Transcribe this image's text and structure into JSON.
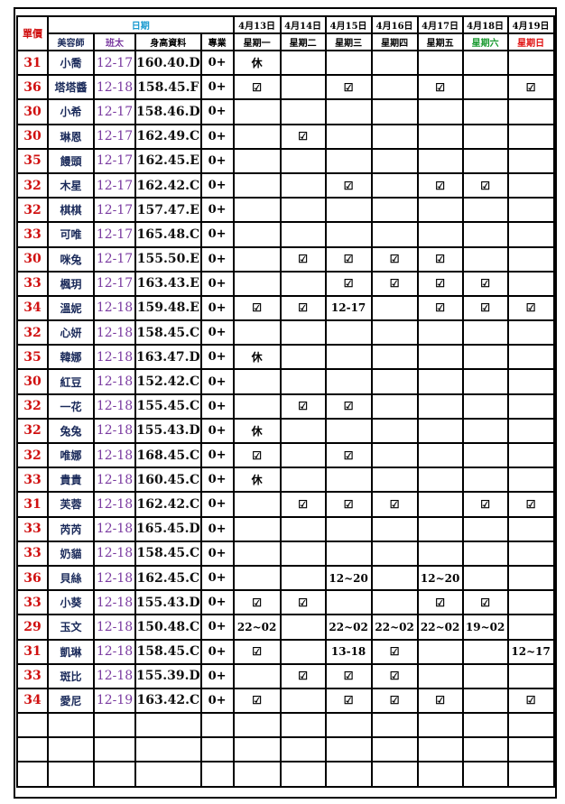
{
  "header": {
    "price": "單價",
    "date": "日期",
    "name": "美容師",
    "shift": "班太",
    "height": "身高資料",
    "specialty": "專業",
    "dates": [
      "4月13日",
      "4月14日",
      "4月15日",
      "4月16日",
      "4月17日",
      "4月18日",
      "4月19日"
    ],
    "weekdays": [
      "星期一",
      "星期二",
      "星期三",
      "星期四",
      "星期五",
      "星期六",
      "星期日"
    ]
  },
  "colors": {
    "price": "#d01010",
    "date_header": "#1a9ad0",
    "saturday": "#1a9a30",
    "sunday": "#e01010",
    "shift": "#7a3aa0"
  },
  "rows": [
    {
      "price": "31",
      "name": "小喬",
      "shift": "12-17",
      "height": "160.40.D",
      "spec": "0+",
      "days": [
        "休",
        "",
        "",
        "",
        "",
        "",
        ""
      ]
    },
    {
      "price": "36",
      "name": "塔塔醬",
      "shift": "12-18",
      "height": "158.45.F",
      "spec": "0+",
      "days": [
        "☑",
        "",
        "☑",
        "",
        "☑",
        "",
        "☑"
      ]
    },
    {
      "price": "30",
      "name": "小希",
      "shift": "12-17",
      "height": "158.46.D",
      "spec": "0+",
      "days": [
        "",
        "",
        "",
        "",
        "",
        "",
        ""
      ]
    },
    {
      "price": "30",
      "name": "琳恩",
      "shift": "12-17",
      "height": "162.49.C",
      "spec": "0+",
      "days": [
        "",
        "☑",
        "",
        "",
        "",
        "",
        ""
      ]
    },
    {
      "price": "35",
      "name": "饅頭",
      "shift": "12-17",
      "height": "162.45.E",
      "spec": "0+",
      "days": [
        "",
        "",
        "",
        "",
        "",
        "",
        ""
      ]
    },
    {
      "price": "32",
      "name": "木星",
      "shift": "12-17",
      "height": "162.42.C",
      "spec": "0+",
      "days": [
        "",
        "",
        "☑",
        "",
        "☑",
        "☑",
        ""
      ]
    },
    {
      "price": "32",
      "name": "棋棋",
      "shift": "12-17",
      "height": "157.47.E",
      "spec": "0+",
      "days": [
        "",
        "",
        "",
        "",
        "",
        "",
        ""
      ]
    },
    {
      "price": "33",
      "name": "可唯",
      "shift": "12-17",
      "height": "165.48.C",
      "spec": "0+",
      "days": [
        "",
        "",
        "",
        "",
        "",
        "",
        ""
      ]
    },
    {
      "price": "30",
      "name": "咪兔",
      "shift": "12-17",
      "height": "155.50.E",
      "spec": "0+",
      "days": [
        "",
        "☑",
        "☑",
        "☑",
        "☑",
        "",
        ""
      ]
    },
    {
      "price": "33",
      "name": "楓玥",
      "shift": "12-17",
      "height": "163.43.E",
      "spec": "0+",
      "days": [
        "",
        "",
        "☑",
        "☑",
        "☑",
        "☑",
        ""
      ]
    },
    {
      "price": "34",
      "name": "溫妮",
      "shift": "12-18",
      "height": "159.48.E",
      "spec": "0+",
      "days": [
        "☑",
        "☑",
        "12-17",
        "",
        "☑",
        "☑",
        "☑"
      ]
    },
    {
      "price": "32",
      "name": "心妍",
      "shift": "12-18",
      "height": "158.45.C",
      "spec": "0+",
      "days": [
        "",
        "",
        "",
        "",
        "",
        "",
        ""
      ]
    },
    {
      "price": "35",
      "name": "韓娜",
      "shift": "12-18",
      "height": "163.47.D",
      "spec": "0+",
      "days": [
        "休",
        "",
        "",
        "",
        "",
        "",
        ""
      ]
    },
    {
      "price": "30",
      "name": "紅豆",
      "shift": "12-18",
      "height": "152.42.C",
      "spec": "0+",
      "days": [
        "",
        "",
        "",
        "",
        "",
        "",
        ""
      ]
    },
    {
      "price": "32",
      "name": "一花",
      "shift": "12-18",
      "height": "155.45.C",
      "spec": "0+",
      "days": [
        "",
        "☑",
        "☑",
        "",
        "",
        "",
        ""
      ]
    },
    {
      "price": "32",
      "name": "兔兔",
      "shift": "12-18",
      "height": "155.43.D",
      "spec": "0+",
      "days": [
        "休",
        "",
        "",
        "",
        "",
        "",
        ""
      ]
    },
    {
      "price": "32",
      "name": "唯娜",
      "shift": "12-18",
      "height": "168.45.C",
      "spec": "0+",
      "days": [
        "☑",
        "",
        "☑",
        "",
        "",
        "",
        ""
      ]
    },
    {
      "price": "33",
      "name": "貴貴",
      "shift": "12-18",
      "height": "160.45.C",
      "spec": "0+",
      "days": [
        "休",
        "",
        "",
        "",
        "",
        "",
        ""
      ]
    },
    {
      "price": "31",
      "name": "芙蓉",
      "shift": "12-18",
      "height": "162.42.C",
      "spec": "0+",
      "days": [
        "",
        "☑",
        "☑",
        "☑",
        "",
        "☑",
        "☑"
      ]
    },
    {
      "price": "33",
      "name": "芮芮",
      "shift": "12-18",
      "height": "165.45.D",
      "spec": "0+",
      "days": [
        "",
        "",
        "",
        "",
        "",
        "",
        ""
      ]
    },
    {
      "price": "33",
      "name": "奶貓",
      "shift": "12-18",
      "height": "158.45.C",
      "spec": "0+",
      "days": [
        "",
        "",
        "",
        "",
        "",
        "",
        ""
      ]
    },
    {
      "price": "36",
      "name": "貝絲",
      "shift": "12-18",
      "height": "162.45.C",
      "spec": "0+",
      "days": [
        "",
        "",
        "12~20",
        "",
        "12~20",
        "",
        ""
      ]
    },
    {
      "price": "33",
      "name": "小葵",
      "shift": "12-18",
      "height": "155.43.D",
      "spec": "0+",
      "days": [
        "☑",
        "☑",
        "",
        "",
        "☑",
        "☑",
        ""
      ]
    },
    {
      "price": "29",
      "name": "玉文",
      "shift": "12-18",
      "height": "150.48.C",
      "spec": "0+",
      "days": [
        "22~02",
        "",
        "22~02",
        "22~02",
        "22~02",
        "19~02",
        ""
      ]
    },
    {
      "price": "31",
      "name": "凱琳",
      "shift": "12-18",
      "height": "158.45.C",
      "spec": "0+",
      "days": [
        "☑",
        "",
        "13-18",
        "☑",
        "",
        "",
        "12~17"
      ]
    },
    {
      "price": "33",
      "name": "斑比",
      "shift": "12-18",
      "height": "155.39.D",
      "spec": "0+",
      "days": [
        "",
        "☑",
        "☑",
        "☑",
        "",
        "",
        ""
      ]
    },
    {
      "price": "34",
      "name": "愛尼",
      "shift": "12-19",
      "height": "163.42.C",
      "spec": "0+",
      "days": [
        "☑",
        "",
        "☑",
        "☑",
        "☑",
        "",
        "☑"
      ]
    }
  ]
}
